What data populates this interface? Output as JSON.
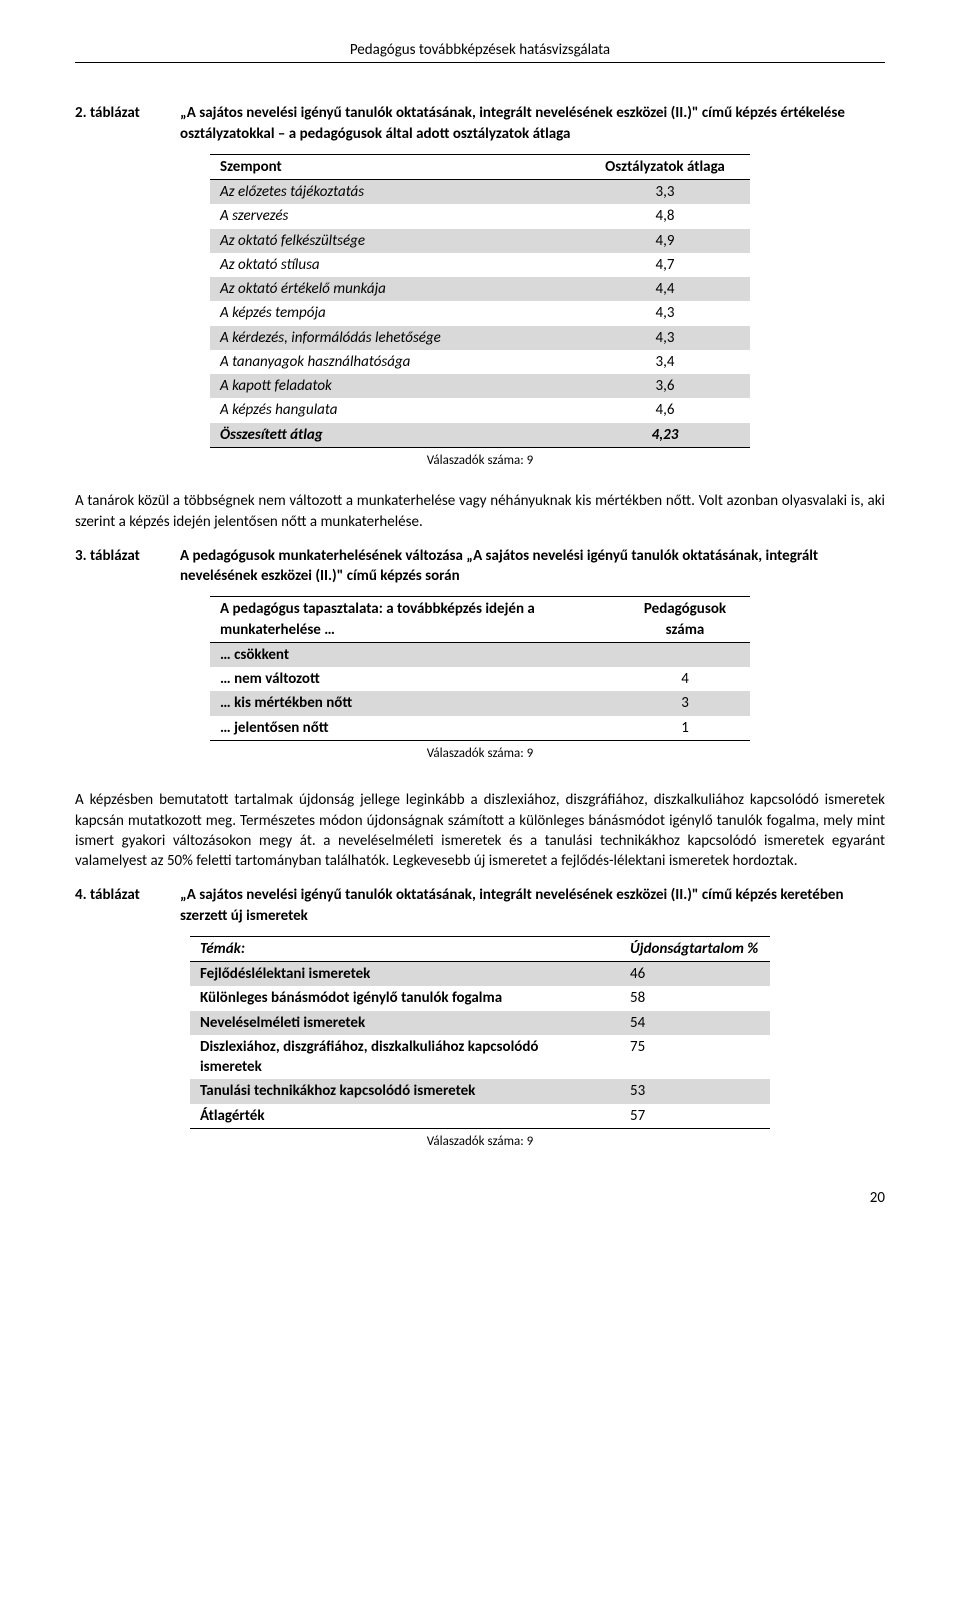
{
  "header": "Pedagógus továbbképzések hatásvizsgálata",
  "section1": {
    "num": "2. táblázat",
    "title": "„A sajátos nevelési igényű tanulók oktatásának, integrált nevelésének eszközei (II.)\" című képzés értékelése osztályzatokkal – a pedagógusok által adott osztályzatok átlaga",
    "col1": "Szempont",
    "col2": "Osztályzatok átlaga",
    "rows": [
      {
        "label": "Az előzetes tájékoztatás",
        "value": "3,3",
        "shade": true
      },
      {
        "label": "A szervezés",
        "value": "4,8",
        "shade": false
      },
      {
        "label": "Az oktató felkészültsége",
        "value": "4,9",
        "shade": true
      },
      {
        "label": "Az oktató stílusa",
        "value": "4,7",
        "shade": false
      },
      {
        "label": "Az oktató értékelő munkája",
        "value": "4,4",
        "shade": true
      },
      {
        "label": "A képzés tempója",
        "value": "4,3",
        "shade": false
      },
      {
        "label": "A kérdezés, informálódás lehetősége",
        "value": "4,3",
        "shade": true
      },
      {
        "label": "A tananyagok használhatósága",
        "value": "3,4",
        "shade": false
      },
      {
        "label": "A kapott feladatok",
        "value": "3,6",
        "shade": true
      },
      {
        "label": "A képzés hangulata",
        "value": "4,6",
        "shade": false
      }
    ],
    "total_label": "Összesített átlag",
    "total_value": "4,23",
    "caption": "Válaszadók száma: 9"
  },
  "para1": "A tanárok közül a többségnek nem változott a munkaterhelése vagy néhányuknak kis mértékben nőtt. Volt azonban olyasvalaki is, aki szerint a képzés idején jelentősen nőtt a munkaterhelése.",
  "section2": {
    "num": "3. táblázat",
    "title": "A pedagógusok munkaterhelésének változása „A sajátos nevelési igényű tanulók oktatásának, integrált nevelésének eszközei (II.)\" című képzés során",
    "col1": "A pedagógus tapasztalata: a továbbképzés idején a munkaterhelése …",
    "col2": "Pedagógusok száma",
    "rows": [
      {
        "label": "… csökkent",
        "value": "",
        "shade": true
      },
      {
        "label": "… nem változott",
        "value": "4",
        "shade": false
      },
      {
        "label": "… kis mértékben nőtt",
        "value": "3",
        "shade": true
      },
      {
        "label": "… jelentősen nőtt",
        "value": "1",
        "shade": false
      }
    ],
    "caption": "Válaszadók száma:  9"
  },
  "para2": "A képzésben bemutatott tartalmak újdonság jellege leginkább a diszlexiához, diszgráfiához, diszkalkuliához kapcsolódó ismeretek kapcsán mutatkozott meg. Természetes módon újdonságnak számított a különleges bánásmódot igénylő tanulók fogalma, mely mint ismert gyakori változásokon megy át. a neveléselméleti ismeretek és a tanulási technikákhoz kapcsolódó ismeretek egyaránt valamelyest az 50% feletti tartományban találhatók. Legkevesebb új ismeretet a fejlődés-lélektani ismeretek hordoztak.",
  "section3": {
    "num": "4. táblázat",
    "title": "„A sajátos nevelési igényű tanulók oktatásának, integrált nevelésének eszközei (II.)\" című képzés keretében szerzett új ismeretek",
    "col1": "Témák:",
    "col2": "Újdonságtartalom %",
    "rows": [
      {
        "label": "Fejlődéslélektani ismeretek",
        "value": "46",
        "shade": true
      },
      {
        "label": "Különleges bánásmódot igénylő tanulók fogalma",
        "value": "58",
        "shade": false
      },
      {
        "label": "Neveléselméleti ismeretek",
        "value": "54",
        "shade": true
      },
      {
        "label": "Diszlexiához, diszgráfiához, diszkalkuliához kapcsolódó ismeretek",
        "value": "75",
        "shade": false
      },
      {
        "label": "Tanulási technikákhoz kapcsolódó ismeretek",
        "value": "53",
        "shade": true
      }
    ],
    "total_label": "Átlagérték",
    "total_value": "57",
    "caption": "Válaszadók száma:  9"
  },
  "page_number": "20"
}
